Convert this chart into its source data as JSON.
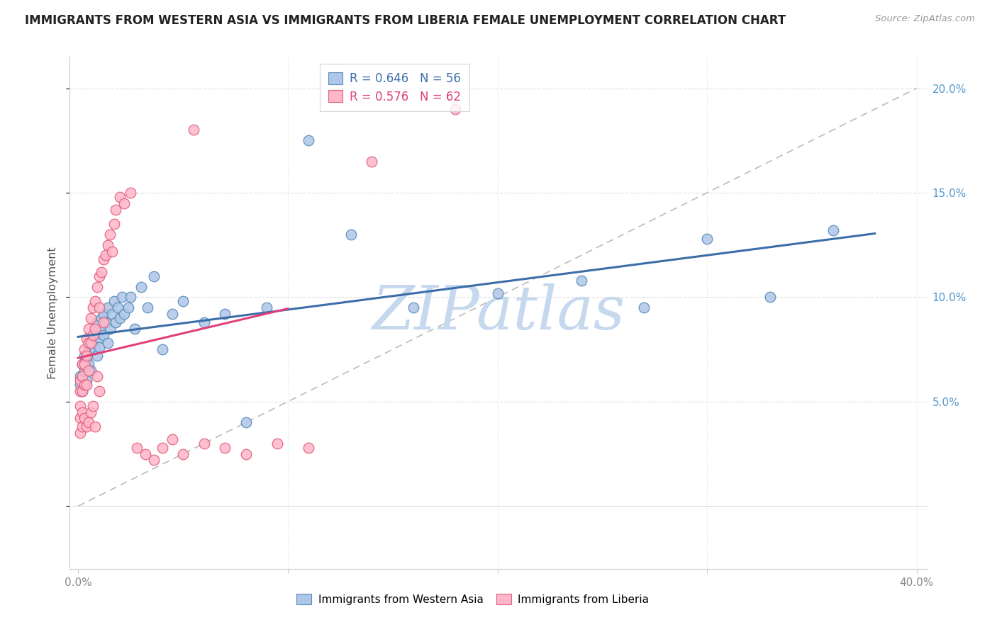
{
  "title": "IMMIGRANTS FROM WESTERN ASIA VS IMMIGRANTS FROM LIBERIA FEMALE UNEMPLOYMENT CORRELATION CHART",
  "source": "Source: ZipAtlas.com",
  "ylabel": "Female Unemployment",
  "right_ytick_labels": [
    "",
    "5.0%",
    "10.0%",
    "15.0%",
    "20.0%"
  ],
  "right_ytick_values": [
    0.0,
    0.05,
    0.1,
    0.15,
    0.2
  ],
  "legend_blue_r": "R = 0.646",
  "legend_blue_n": "N = 56",
  "legend_pink_r": "R = 0.576",
  "legend_pink_n": "N = 62",
  "legend_label_blue": "Immigrants from Western Asia",
  "legend_label_pink": "Immigrants from Liberia",
  "blue_dot_face": "#AEC6E8",
  "blue_dot_edge": "#5B8DB8",
  "pink_dot_face": "#FFB6C8",
  "pink_dot_edge": "#E06080",
  "blue_line_color": "#3B6EA8",
  "pink_line_color": "#E0407A",
  "ref_line_color": "#BBBBBB",
  "watermark_text": "ZIPatlas",
  "watermark_color": "#C5D8EE",
  "background": "#FFFFFF",
  "grid_color": "#DDDDDD",
  "title_color": "#222222",
  "source_color": "#999999",
  "axis_label_color": "#555555",
  "tick_label_color": "#888888",
  "right_tick_color": "#5599CC",
  "blue_x": [
    0.001,
    0.001,
    0.002,
    0.002,
    0.003,
    0.003,
    0.004,
    0.004,
    0.005,
    0.005,
    0.006,
    0.006,
    0.007,
    0.008,
    0.008,
    0.009,
    0.009,
    0.01,
    0.01,
    0.011,
    0.011,
    0.012,
    0.012,
    0.013,
    0.014,
    0.014,
    0.015,
    0.016,
    0.017,
    0.018,
    0.019,
    0.02,
    0.021,
    0.022,
    0.024,
    0.025,
    0.027,
    0.03,
    0.033,
    0.036,
    0.04,
    0.045,
    0.05,
    0.06,
    0.07,
    0.08,
    0.09,
    0.11,
    0.13,
    0.16,
    0.2,
    0.24,
    0.27,
    0.3,
    0.33,
    0.36
  ],
  "blue_y": [
    0.062,
    0.058,
    0.068,
    0.055,
    0.065,
    0.072,
    0.07,
    0.06,
    0.075,
    0.068,
    0.078,
    0.065,
    0.08,
    0.075,
    0.082,
    0.072,
    0.088,
    0.08,
    0.076,
    0.085,
    0.09,
    0.082,
    0.092,
    0.088,
    0.078,
    0.095,
    0.085,
    0.092,
    0.098,
    0.088,
    0.095,
    0.09,
    0.1,
    0.092,
    0.095,
    0.1,
    0.085,
    0.105,
    0.095,
    0.11,
    0.075,
    0.092,
    0.098,
    0.088,
    0.092,
    0.04,
    0.095,
    0.175,
    0.13,
    0.095,
    0.102,
    0.108,
    0.095,
    0.128,
    0.1,
    0.132
  ],
  "pink_x": [
    0.001,
    0.001,
    0.001,
    0.001,
    0.001,
    0.002,
    0.002,
    0.002,
    0.002,
    0.002,
    0.003,
    0.003,
    0.003,
    0.003,
    0.004,
    0.004,
    0.004,
    0.004,
    0.005,
    0.005,
    0.005,
    0.005,
    0.006,
    0.006,
    0.006,
    0.007,
    0.007,
    0.007,
    0.008,
    0.008,
    0.008,
    0.009,
    0.009,
    0.01,
    0.01,
    0.01,
    0.011,
    0.012,
    0.012,
    0.013,
    0.014,
    0.015,
    0.016,
    0.017,
    0.018,
    0.02,
    0.022,
    0.025,
    0.028,
    0.032,
    0.036,
    0.04,
    0.045,
    0.05,
    0.055,
    0.06,
    0.07,
    0.08,
    0.095,
    0.11,
    0.14,
    0.18
  ],
  "pink_y": [
    0.06,
    0.055,
    0.048,
    0.042,
    0.035,
    0.068,
    0.062,
    0.055,
    0.045,
    0.038,
    0.075,
    0.068,
    0.058,
    0.042,
    0.08,
    0.072,
    0.058,
    0.038,
    0.085,
    0.078,
    0.065,
    0.04,
    0.09,
    0.078,
    0.045,
    0.095,
    0.082,
    0.048,
    0.098,
    0.085,
    0.038,
    0.105,
    0.062,
    0.11,
    0.095,
    0.055,
    0.112,
    0.118,
    0.088,
    0.12,
    0.125,
    0.13,
    0.122,
    0.135,
    0.142,
    0.148,
    0.145,
    0.15,
    0.028,
    0.025,
    0.022,
    0.028,
    0.032,
    0.025,
    0.18,
    0.03,
    0.028,
    0.025,
    0.03,
    0.028,
    0.165,
    0.19
  ]
}
